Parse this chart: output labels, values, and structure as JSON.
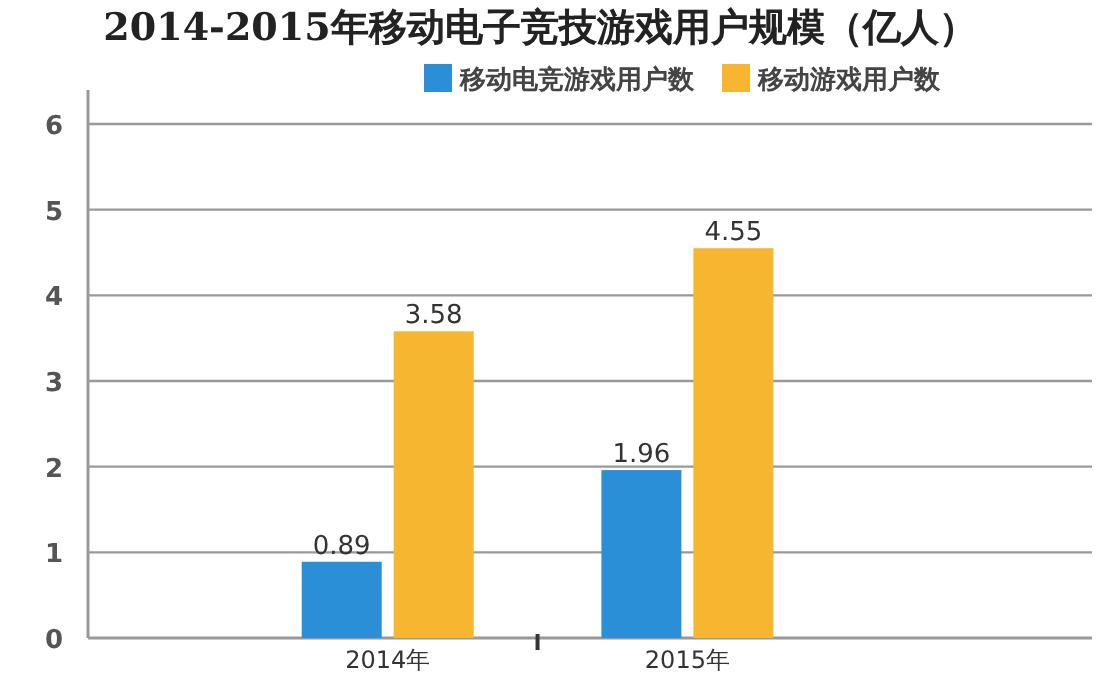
{
  "chart_data": {
    "type": "bar",
    "title": "2014-2015年移动电子竞技游戏用户规模（亿人）",
    "categories": [
      "2014年",
      "2015年"
    ],
    "series": [
      {
        "name": "移动电竞游戏用户数",
        "color": "#2a8fd6",
        "values": [
          0.89,
          1.96
        ]
      },
      {
        "name": "移动游戏用户数",
        "color": "#f6b630",
        "values": [
          3.58,
          4.55
        ]
      }
    ],
    "ylim": [
      0,
      6
    ],
    "yticks": [
      0,
      1,
      2,
      3,
      4,
      5,
      6
    ],
    "grid": "y",
    "legend": "top right",
    "data_labels": true
  }
}
